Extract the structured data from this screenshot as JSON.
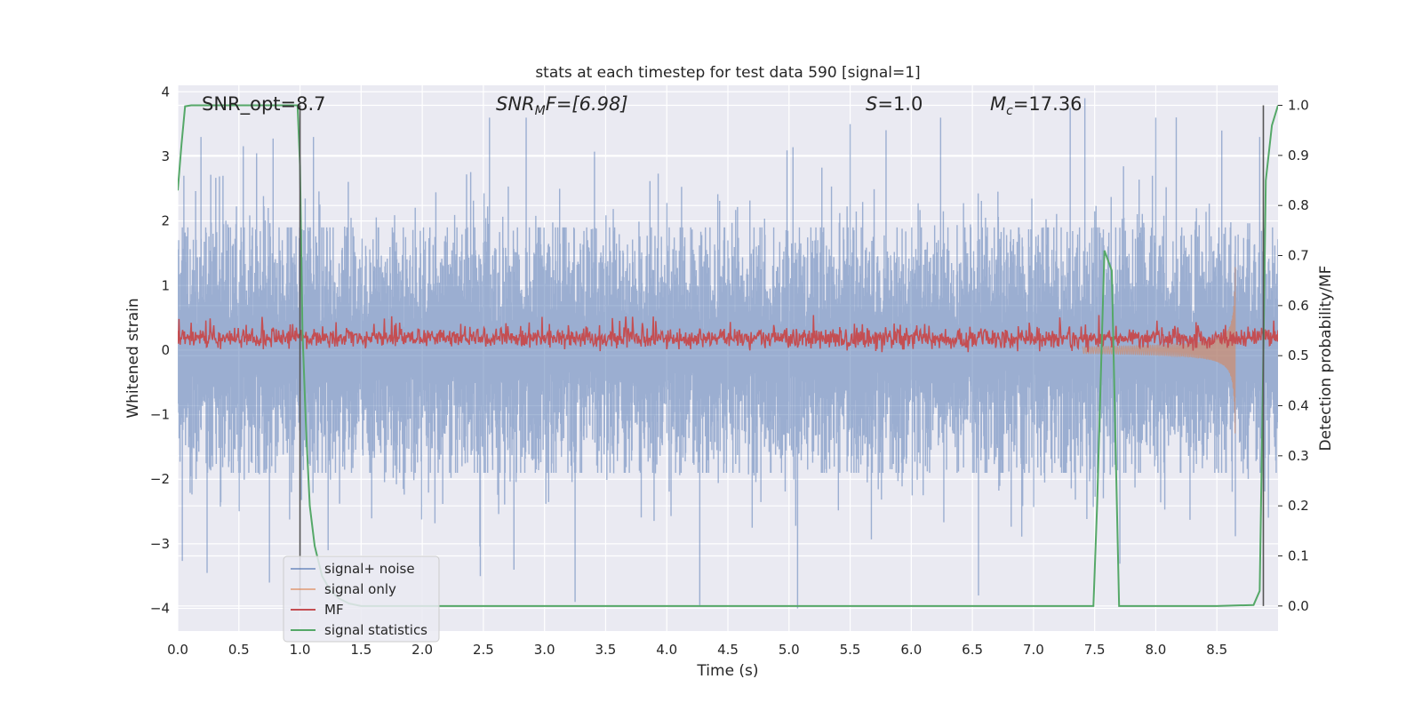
{
  "chart_data": {
    "type": "line",
    "title": "stats at each timestep for test data 590 [signal=1]",
    "xlabel": "Time (s)",
    "ylabel_left": "Whitened strain",
    "ylabel_right": "Detection probability/MF",
    "xlim": [
      0,
      9
    ],
    "ylim_left": [
      -4.35,
      4.1
    ],
    "ylim_right": [
      -0.05,
      1.04
    ],
    "x_ticks": [
      0.0,
      0.5,
      1.0,
      1.5,
      2.0,
      2.5,
      3.0,
      3.5,
      4.0,
      4.5,
      5.0,
      5.5,
      6.0,
      6.5,
      7.0,
      7.5,
      8.0,
      8.5
    ],
    "x_tick_labels": [
      "0.0",
      "0.5",
      "1.0",
      "1.5",
      "2.0",
      "2.5",
      "3.0",
      "3.5",
      "4.0",
      "4.5",
      "5.0",
      "5.5",
      "6.0",
      "6.5",
      "7.0",
      "7.5",
      "8.0",
      "8.5"
    ],
    "y_ticks_left": [
      4,
      3,
      2,
      1,
      0,
      -1,
      -2,
      -3,
      -4
    ],
    "y_tick_labels_left": [
      "4",
      "3",
      "2",
      "1",
      "0",
      "−1",
      "−2",
      "−3",
      "−4"
    ],
    "y_ticks_right": [
      1.0,
      0.9,
      0.8,
      0.7,
      0.6,
      0.5,
      0.4,
      0.3,
      0.2,
      0.1,
      0.0
    ],
    "y_tick_labels_right": [
      "1.0",
      "0.9",
      "0.8",
      "0.7",
      "0.6",
      "0.5",
      "0.4",
      "0.3",
      "0.2",
      "0.1",
      "0.0"
    ],
    "grid": true,
    "legend_position": "lower-left",
    "annotations": {
      "snr_opt": "SNR_opt=8.7",
      "snr_mf_main": "SNR",
      "snr_mf_sub": "M",
      "snr_mf_rest": "F=[6.98]",
      "s_main": "S",
      "s_rest": "=1.0",
      "mc_main": "M",
      "mc_sub": "c",
      "mc_rest": "=17.36"
    },
    "vertical_markers": [
      1.0,
      8.88
    ],
    "series": [
      {
        "name": "signal+ noise",
        "axis": "left",
        "color": "#4c72b0",
        "description_values": {
          "approx_range": [
            -4.0,
            3.9
          ],
          "time_range": [
            0,
            9
          ]
        },
        "peaks": [
          {
            "x": 0.05,
            "y": 2.7
          },
          {
            "x": 0.19,
            "y": 3.3
          },
          {
            "x": 0.24,
            "y": -3.45
          },
          {
            "x": 0.37,
            "y": 2.7
          },
          {
            "x": 0.74,
            "y": 2.2
          },
          {
            "x": 0.75,
            "y": -3.6
          },
          {
            "x": 1.11,
            "y": 3.3
          },
          {
            "x": 1.23,
            "y": -3.1
          },
          {
            "x": 2.55,
            "y": 3.6
          },
          {
            "x": 2.75,
            "y": -3.4
          },
          {
            "x": 2.85,
            "y": 3.6
          },
          {
            "x": 3.25,
            "y": -3.9
          },
          {
            "x": 4.27,
            "y": -3.95
          },
          {
            "x": 5.07,
            "y": -4.0
          },
          {
            "x": 5.5,
            "y": 3.5
          },
          {
            "x": 6.24,
            "y": 3.6
          },
          {
            "x": 6.55,
            "y": -3.8
          },
          {
            "x": 7.3,
            "y": 3.75
          },
          {
            "x": 7.42,
            "y": 3.9
          },
          {
            "x": 8.0,
            "y": 3.6
          },
          {
            "x": 8.54,
            "y": 3.4
          },
          {
            "x": 8.85,
            "y": 3.3
          }
        ]
      },
      {
        "name": "signal only",
        "axis": "left",
        "color": "#dd8452",
        "description_values": {
          "onset_x": 7.4,
          "merger_x": 8.65,
          "peak_amplitude": 1.95
        }
      },
      {
        "name": "MF",
        "axis": "right",
        "color": "#c44e52",
        "description_values": {
          "approx_level": 0.535,
          "band": [
            0.515,
            0.575
          ]
        }
      },
      {
        "name": "signal statistics",
        "axis": "right",
        "color": "#55a868",
        "x": [
          0.0,
          0.03,
          0.06,
          0.11,
          0.5,
          0.98,
          1.0,
          1.02,
          1.05,
          1.08,
          1.12,
          1.18,
          1.25,
          1.32,
          1.4,
          1.5,
          2.0,
          3.0,
          4.0,
          5.0,
          6.0,
          7.0,
          7.49,
          7.52,
          7.58,
          7.64,
          7.7,
          7.75,
          8.0,
          8.5,
          8.8,
          8.85,
          8.88,
          8.9,
          8.95,
          9.0
        ],
        "y": [
          0.83,
          0.92,
          0.998,
          1.0,
          1.0,
          1.0,
          0.88,
          0.55,
          0.35,
          0.2,
          0.12,
          0.06,
          0.03,
          0.015,
          0.005,
          0.0,
          0.0,
          0.0,
          0.0,
          0.0,
          0.0,
          0.0,
          0.0,
          0.2,
          0.71,
          0.67,
          0.0,
          0.0,
          0.0,
          0.0,
          0.002,
          0.03,
          0.5,
          0.85,
          0.96,
          1.0
        ]
      }
    ]
  }
}
